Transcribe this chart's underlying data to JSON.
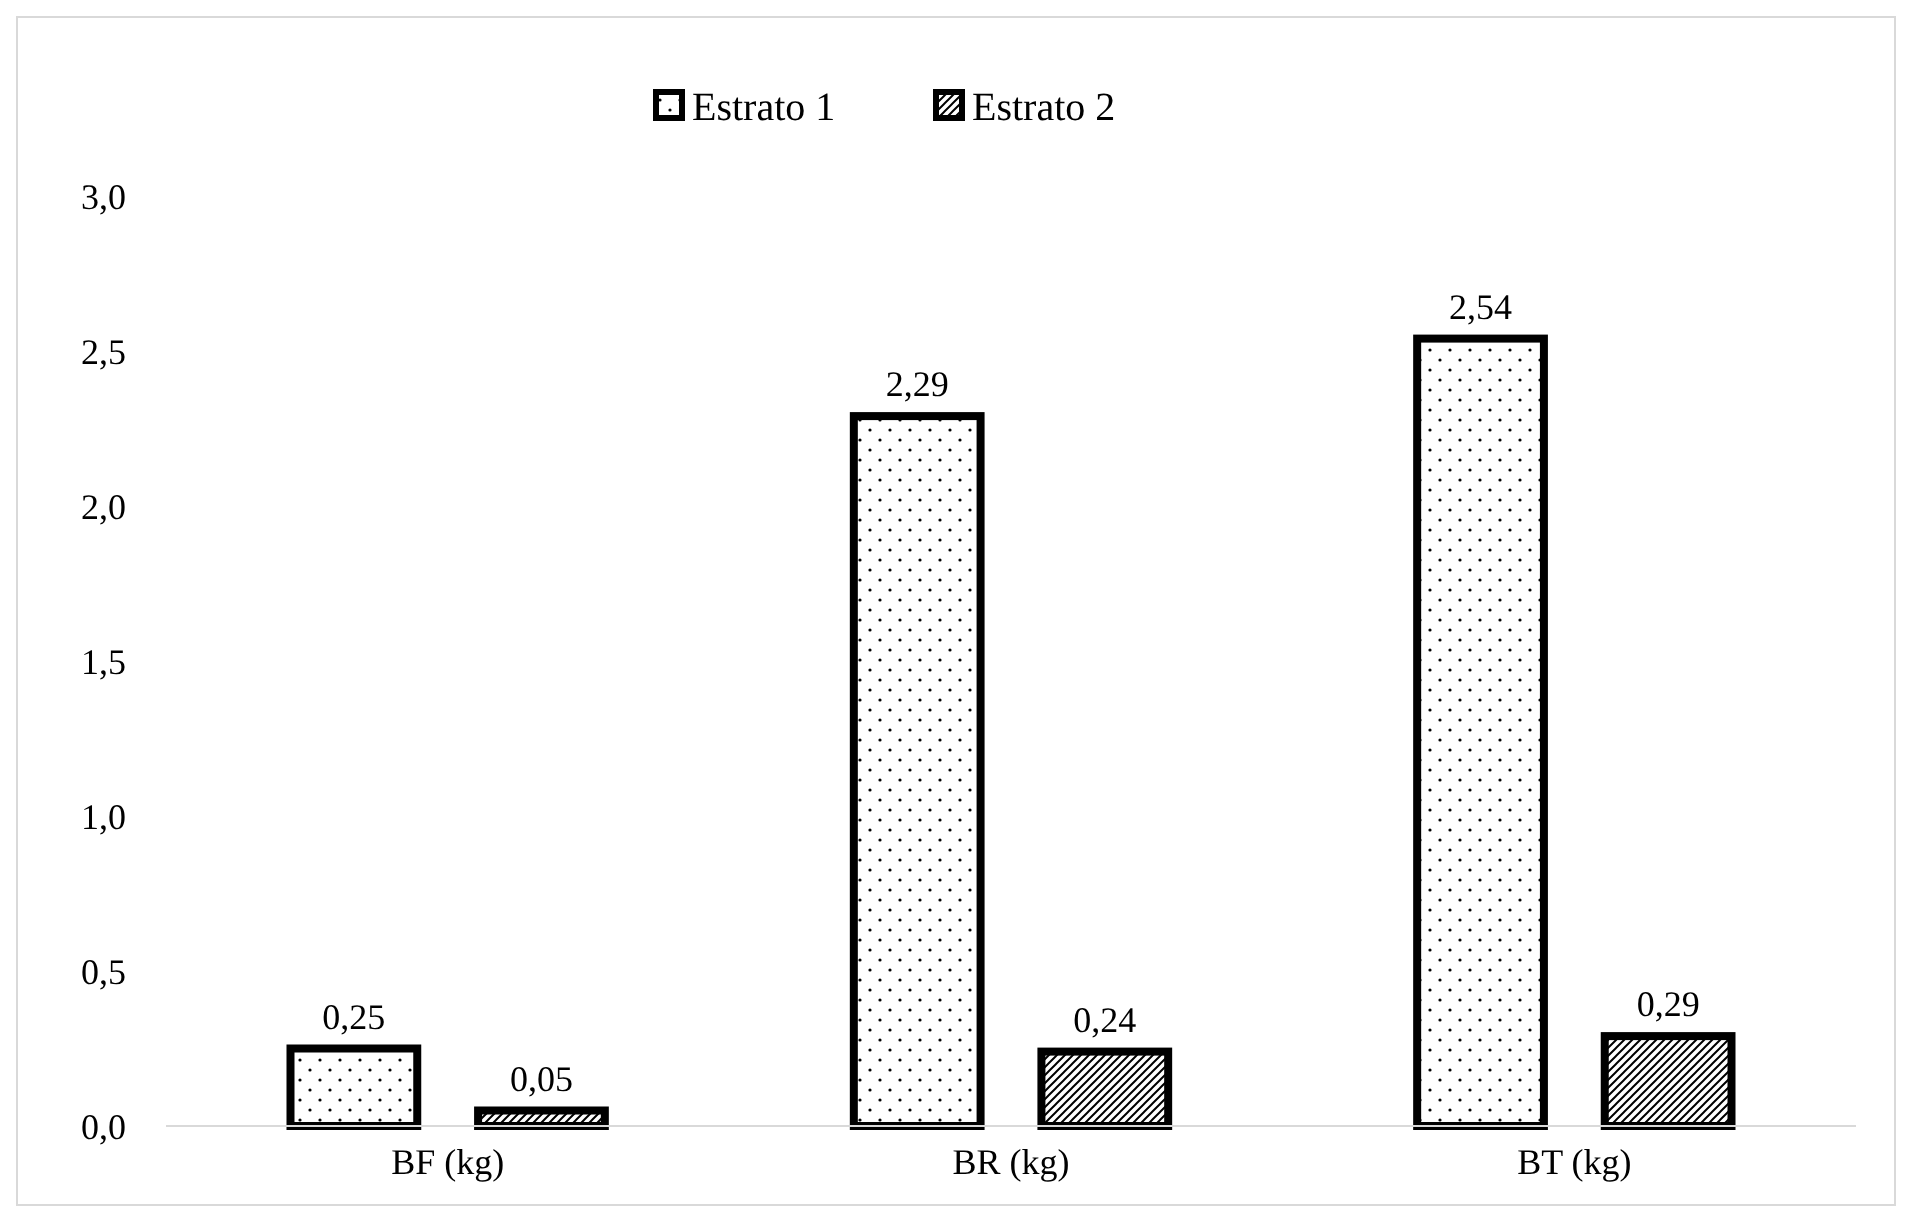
{
  "chart_data": {
    "type": "bar",
    "categories": [
      "BF (kg)",
      "BR (kg)",
      "BT (kg)"
    ],
    "series": [
      {
        "name": "Estrato 1",
        "color": "#000000",
        "values": [
          0.25,
          2.29,
          2.54
        ],
        "value_labels": [
          "0,25",
          "2,29",
          "2,54"
        ]
      },
      {
        "name": "Estrato 2",
        "color": "#000000",
        "values": [
          0.05,
          0.24,
          0.29
        ],
        "value_labels": [
          "0,05",
          "0,24",
          "0,29"
        ]
      }
    ],
    "ylim": [
      0,
      3
    ],
    "yticks": [
      {
        "value": 0,
        "label": "0,0"
      },
      {
        "value": 0.5,
        "label": "0,5"
      },
      {
        "value": 1,
        "label": "1,0"
      },
      {
        "value": 1.5,
        "label": "1,5"
      },
      {
        "value": 2,
        "label": "2,0"
      },
      {
        "value": 2.5,
        "label": "2,5"
      },
      {
        "value": 3,
        "label": "3,0"
      }
    ],
    "grid": false,
    "legend": "top"
  }
}
